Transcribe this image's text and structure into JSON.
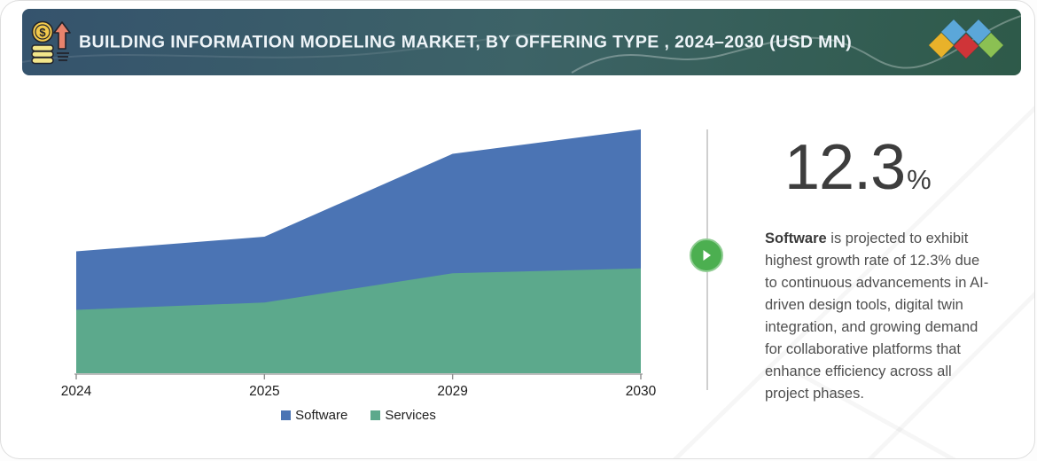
{
  "header": {
    "title": "BUILDING INFORMATION MODELING MARKET, BY OFFERING TYPE , 2024–2030 (USD MN)",
    "icon": "coins-growth-icon",
    "logo": "four-diamonds-brand-logo",
    "colors": {
      "gradient_left": "#35536d",
      "gradient_mid": "#3d6367",
      "gradient_right": "#2e5a49",
      "text": "#eef4f8"
    }
  },
  "chart_data": {
    "type": "area",
    "stacked": true,
    "title": "Building Information Modeling Market, by Offering Type, 2024–2030 (USD MN)",
    "categories": [
      "2024",
      "2025",
      "2029",
      "2030"
    ],
    "series": [
      {
        "name": "Software",
        "color": "#4b74b4",
        "values": [
          24,
          27,
          49,
          57
        ]
      },
      {
        "name": "Services",
        "color": "#5ca98c",
        "values": [
          26,
          29,
          41,
          43
        ]
      }
    ],
    "stack_order_bottom_to_top": [
      "Services",
      "Software"
    ],
    "xlabel": "",
    "ylabel": "",
    "ylim": [
      0,
      105
    ],
    "y_axis_shown": false,
    "grid": false,
    "legend_position": "bottom",
    "units_note": "relative values — no y-axis scale displayed"
  },
  "insight": {
    "stat_value": "12.3",
    "stat_unit": "%",
    "highlight": "Software",
    "body": " is projected to exhibit highest growth rate of 12.3% due to continuous advancements in AI-driven design tools, digital twin integration, and growing demand for collaborative platforms that enhance efficiency across all project phases.",
    "accent_color": "#4caf50"
  }
}
